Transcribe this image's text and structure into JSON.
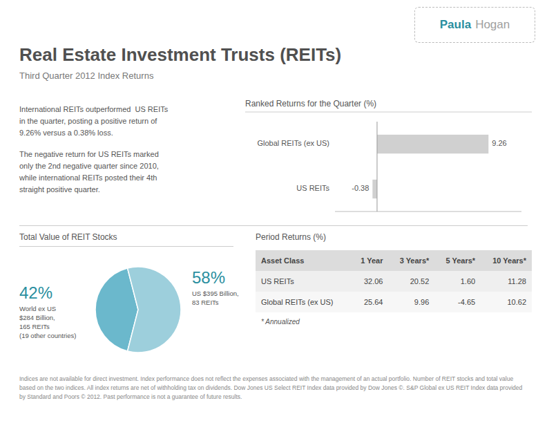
{
  "title": "Real Estate Investment Trusts (REITs)",
  "subtitle": "Third Quarter 2012 Index Returns",
  "logo": [
    "Paula",
    "Hogan"
  ],
  "text": [
    [
      "International REITs outperformed  US REITs",
      "in the quarter, posting a positive return of",
      "9.26% versus a 0.38% loss."
    ],
    [
      "The negative return for US REITs marked",
      "only the 2nd negative quarter since 2010,",
      "while international REITs posted their 4th",
      "straight positive quarter."
    ]
  ],
  "footer": "Indices are not available for direct investment. Index performance does not reflect the expenses associated with the management of an actual portfolio. Number of REIT stocks and total value based on the two indices. All index returns are net of withholding tax on dividends. Dow Jones US Select REIT Index data provided by Dow Jones ©. S&P Global ex US REIT Index data provided by Standard and Poors © 2012. Past performance is not a guarantee of future results.",
  "chart_data": [
    {
      "type": "bar",
      "orientation": "horizontal",
      "title": "Ranked Returns for the Quarter (%)",
      "categories": [
        "Global REITs (ex US)",
        "US REITs"
      ],
      "values": [
        9.26,
        -0.38
      ],
      "color": "#d0d0d0",
      "xlim": [
        -3.5,
        12
      ],
      "xticks": [
        0
      ],
      "tick_labels": false,
      "data_labels": true
    },
    {
      "type": "pie",
      "title": "Total Value of REIT Stocks",
      "categories": [
        "World ex US\n$284 Billion,\n165 REITs\n(19 other countries)",
        "US $395 Billion,\n83 REITs"
      ],
      "values": [
        42,
        58
      ],
      "value_labels": [
        "42%",
        "58%"
      ],
      "colors": [
        "#6bb8cc",
        "#9dcfdc"
      ],
      "data_labels": true
    },
    {
      "type": "table",
      "title": "Period Returns (%)",
      "ylabel": "Asset Class",
      "categories": [
        "1 Year",
        "3 Years*",
        "5 Years*",
        "10 Years*"
      ],
      "series": [
        {
          "name": "US REITs",
          "values": [
            32.06,
            20.52,
            1.6,
            11.28
          ],
          "value_labels": [
            "32.06",
            "20.52",
            "1.60",
            "11.28"
          ]
        },
        {
          "name": "Global REITs (ex US)",
          "values": [
            25.64,
            9.96,
            -4.65,
            10.62
          ],
          "value_labels": [
            "25.64",
            "9.96",
            "-4.65",
            "10.62"
          ]
        }
      ],
      "annotations": [
        "* Annualized"
      ]
    }
  ]
}
